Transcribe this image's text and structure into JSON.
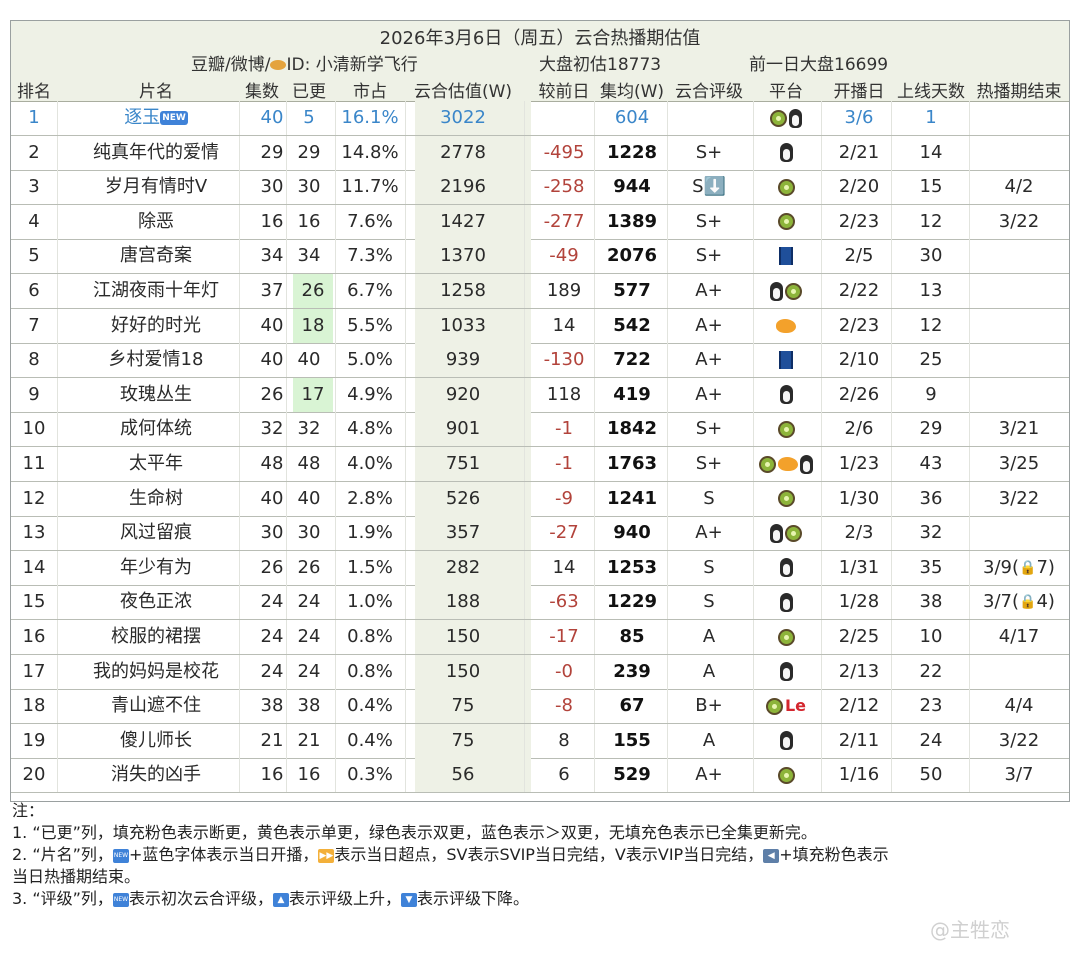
{
  "header": {
    "title": "2026年3月6日（周五）云合热播期估值",
    "source": "豆瓣/微博/",
    "source_id": "ID: 小清新学飞行",
    "market_estimate": "大盘初估18773",
    "prev_market": "前一日大盘16699"
  },
  "columns": [
    "排名",
    "片名",
    "集数",
    "已更",
    "市占",
    "云合估值(W)",
    "较前日",
    "集均(W)",
    "云合评级",
    "平台",
    "开播日",
    "上线天数",
    "热播期结束"
  ],
  "rows": [
    {
      "rank": "1",
      "name": "逐玉",
      "eps": "40",
      "updated": "5",
      "share": "16.1%",
      "est": "3022",
      "delta": "",
      "avg": "604",
      "grade": "",
      "platforms": [
        "kiwi",
        "penguin"
      ],
      "start": "3/6",
      "days": "1",
      "end": "",
      "isNew": true,
      "updatedColor": ""
    },
    {
      "rank": "2",
      "name": "纯真年代的爱情",
      "eps": "29",
      "updated": "29",
      "share": "14.8%",
      "est": "2778",
      "delta": "-495",
      "avg": "1228",
      "grade": "S+",
      "platforms": [
        "penguin"
      ],
      "start": "2/21",
      "days": "14",
      "end": "",
      "updatedColor": ""
    },
    {
      "rank": "3",
      "name": "岁月有情时V",
      "eps": "30",
      "updated": "30",
      "share": "11.7%",
      "est": "2196",
      "delta": "-258",
      "avg": "944",
      "grade": "S⬇️",
      "platforms": [
        "kiwi"
      ],
      "start": "2/20",
      "days": "15",
      "end": "4/2",
      "updatedColor": ""
    },
    {
      "rank": "4",
      "name": "除恶",
      "eps": "16",
      "updated": "16",
      "share": "7.6%",
      "est": "1427",
      "delta": "-277",
      "avg": "1389",
      "grade": "S+",
      "platforms": [
        "kiwi"
      ],
      "start": "2/23",
      "days": "12",
      "end": "3/22",
      "updatedColor": ""
    },
    {
      "rank": "5",
      "name": "唐宫奇案",
      "eps": "34",
      "updated": "34",
      "share": "7.3%",
      "est": "1370",
      "delta": "-49",
      "avg": "2076",
      "grade": "S+",
      "platforms": [
        "jeans"
      ],
      "start": "2/5",
      "days": "30",
      "end": "",
      "updatedColor": ""
    },
    {
      "rank": "6",
      "name": "江湖夜雨十年灯",
      "eps": "37",
      "updated": "26",
      "share": "6.7%",
      "est": "1258",
      "delta": "189",
      "avg": "577",
      "grade": "A+",
      "platforms": [
        "penguin",
        "kiwi"
      ],
      "start": "2/22",
      "days": "13",
      "end": "",
      "updatedColor": "green"
    },
    {
      "rank": "7",
      "name": "好好的时光",
      "eps": "40",
      "updated": "18",
      "share": "5.5%",
      "est": "1033",
      "delta": "14",
      "avg": "542",
      "grade": "A+",
      "platforms": [
        "mango"
      ],
      "start": "2/23",
      "days": "12",
      "end": "",
      "updatedColor": "green"
    },
    {
      "rank": "8",
      "name": "乡村爱情18",
      "eps": "40",
      "updated": "40",
      "share": "5.0%",
      "est": "939",
      "delta": "-130",
      "avg": "722",
      "grade": "A+",
      "platforms": [
        "jeans"
      ],
      "start": "2/10",
      "days": "25",
      "end": "",
      "updatedColor": ""
    },
    {
      "rank": "9",
      "name": "玫瑰丛生",
      "eps": "26",
      "updated": "17",
      "share": "4.9%",
      "est": "920",
      "delta": "118",
      "avg": "419",
      "grade": "A+",
      "platforms": [
        "penguin"
      ],
      "start": "2/26",
      "days": "9",
      "end": "",
      "updatedColor": "green"
    },
    {
      "rank": "10",
      "name": "成何体统",
      "eps": "32",
      "updated": "32",
      "share": "4.8%",
      "est": "901",
      "delta": "-1",
      "avg": "1842",
      "grade": "S+",
      "platforms": [
        "kiwi"
      ],
      "start": "2/6",
      "days": "29",
      "end": "3/21",
      "updatedColor": ""
    },
    {
      "rank": "11",
      "name": "太平年",
      "eps": "48",
      "updated": "48",
      "share": "4.0%",
      "est": "751",
      "delta": "-1",
      "avg": "1763",
      "grade": "S+",
      "platforms": [
        "kiwi",
        "mango",
        "penguin"
      ],
      "start": "1/23",
      "days": "43",
      "end": "3/25",
      "updatedColor": ""
    },
    {
      "rank": "12",
      "name": "生命树",
      "eps": "40",
      "updated": "40",
      "share": "2.8%",
      "est": "526",
      "delta": "-9",
      "avg": "1241",
      "grade": "S",
      "platforms": [
        "kiwi"
      ],
      "start": "1/30",
      "days": "36",
      "end": "3/22",
      "updatedColor": ""
    },
    {
      "rank": "13",
      "name": "风过留痕",
      "eps": "30",
      "updated": "30",
      "share": "1.9%",
      "est": "357",
      "delta": "-27",
      "avg": "940",
      "grade": "A+",
      "platforms": [
        "penguin",
        "kiwi"
      ],
      "start": "2/3",
      "days": "32",
      "end": "",
      "updatedColor": ""
    },
    {
      "rank": "14",
      "name": "年少有为",
      "eps": "26",
      "updated": "26",
      "share": "1.5%",
      "est": "282",
      "delta": "14",
      "avg": "1253",
      "grade": "S",
      "platforms": [
        "penguin"
      ],
      "start": "1/31",
      "days": "35",
      "end": "3/9(",
      "endLock": "7)",
      "updatedColor": ""
    },
    {
      "rank": "15",
      "name": "夜色正浓",
      "eps": "24",
      "updated": "24",
      "share": "1.0%",
      "est": "188",
      "delta": "-63",
      "avg": "1229",
      "grade": "S",
      "platforms": [
        "penguin"
      ],
      "start": "1/28",
      "days": "38",
      "end": "3/7(",
      "endLock": "4)",
      "updatedColor": ""
    },
    {
      "rank": "16",
      "name": "校服的裙摆",
      "eps": "24",
      "updated": "24",
      "share": "0.8%",
      "est": "150",
      "delta": "-17",
      "avg": "85",
      "grade": "A",
      "platforms": [
        "kiwi"
      ],
      "start": "2/25",
      "days": "10",
      "end": "4/17",
      "updatedColor": ""
    },
    {
      "rank": "17",
      "name": "我的妈妈是校花",
      "eps": "24",
      "updated": "24",
      "share": "0.8%",
      "est": "150",
      "delta": "-0",
      "avg": "239",
      "grade": "A",
      "platforms": [
        "penguin"
      ],
      "start": "2/13",
      "days": "22",
      "end": "",
      "updatedColor": ""
    },
    {
      "rank": "18",
      "name": "青山遮不住",
      "eps": "38",
      "updated": "38",
      "share": "0.4%",
      "est": "75",
      "delta": "-8",
      "avg": "67",
      "grade": "B+",
      "platforms": [
        "kiwi",
        "le"
      ],
      "start": "2/12",
      "days": "23",
      "end": "4/4",
      "updatedColor": ""
    },
    {
      "rank": "19",
      "name": "傻儿师长",
      "eps": "21",
      "updated": "21",
      "share": "0.4%",
      "est": "75",
      "delta": "8",
      "avg": "155",
      "grade": "A",
      "platforms": [
        "penguin"
      ],
      "start": "2/11",
      "days": "24",
      "end": "3/22",
      "updatedColor": ""
    },
    {
      "rank": "20",
      "name": "消失的凶手",
      "eps": "16",
      "updated": "16",
      "share": "0.3%",
      "est": "56",
      "delta": "6",
      "avg": "529",
      "grade": "A+",
      "platforms": [
        "kiwi"
      ],
      "start": "1/16",
      "days": "50",
      "end": "3/7",
      "updatedColor": ""
    }
  ],
  "notes": {
    "label": "注：",
    "line1": "1. “已更”列，填充粉色表示断更，黄色表示单更，绿色表示双更，蓝色表示＞双更，无填充色表示已全集更新完。",
    "line2a": "2. “片名”列，",
    "line2b": "+蓝色字体表示当日开播，",
    "line2c": "表示当日超点，SV表示SVIP当日完结，V表示VIP当日完结，",
    "line2d": "+填充粉色表示",
    "line2e": "当日热播期结束。",
    "line3a": "3. “评级”列，",
    "line3b": "表示初次云合评级，",
    "line3c": "表示评级上升，",
    "line3d": "表示评级下降。",
    "new_badge": "NEW",
    "lock_glyph": "🔒"
  },
  "watermark": "@主牲恋"
}
